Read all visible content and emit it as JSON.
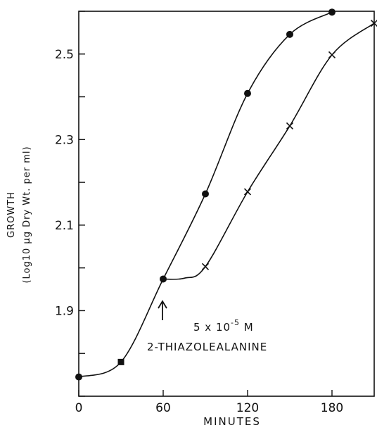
{
  "chart_data": {
    "type": "line",
    "title": "",
    "xlabel": "MINUTES",
    "ylabel_line1": "GROWTH",
    "ylabel_line2": "(Log10 µg Dry Wt. per ml)",
    "xlim": [
      0,
      210
    ],
    "ylim": [
      1.7,
      2.6
    ],
    "x_ticks": [
      0,
      60,
      120,
      180
    ],
    "x_tick_labels": [
      "0",
      "60",
      "120",
      "180"
    ],
    "y_ticks": [
      1.7,
      1.8,
      1.9,
      2.0,
      2.1,
      2.2,
      2.3,
      2.4,
      2.5,
      2.6
    ],
    "y_tick_labels": [
      "",
      "",
      "1.9",
      "",
      "2.1",
      "",
      "2.3",
      "",
      "2.5",
      ""
    ],
    "grid": false,
    "series": [
      {
        "marker": "filled-circle",
        "x": [
          0,
          30,
          60,
          90,
          120,
          150,
          180
        ],
        "y": [
          1.745,
          1.78,
          1.974,
          2.173,
          2.408,
          2.546,
          2.598
        ]
      },
      {
        "marker": "x-cross",
        "x": [
          90,
          120,
          150,
          180,
          210
        ],
        "y": [
          2.003,
          2.178,
          2.332,
          2.498,
          2.572
        ]
      }
    ],
    "annotations": {
      "arrow_at_x": 60,
      "concentration": "5 x 10",
      "concentration_exp": "-5",
      "concentration_unit": " M",
      "compound": "2-THIAZOLEALANINE"
    }
  }
}
